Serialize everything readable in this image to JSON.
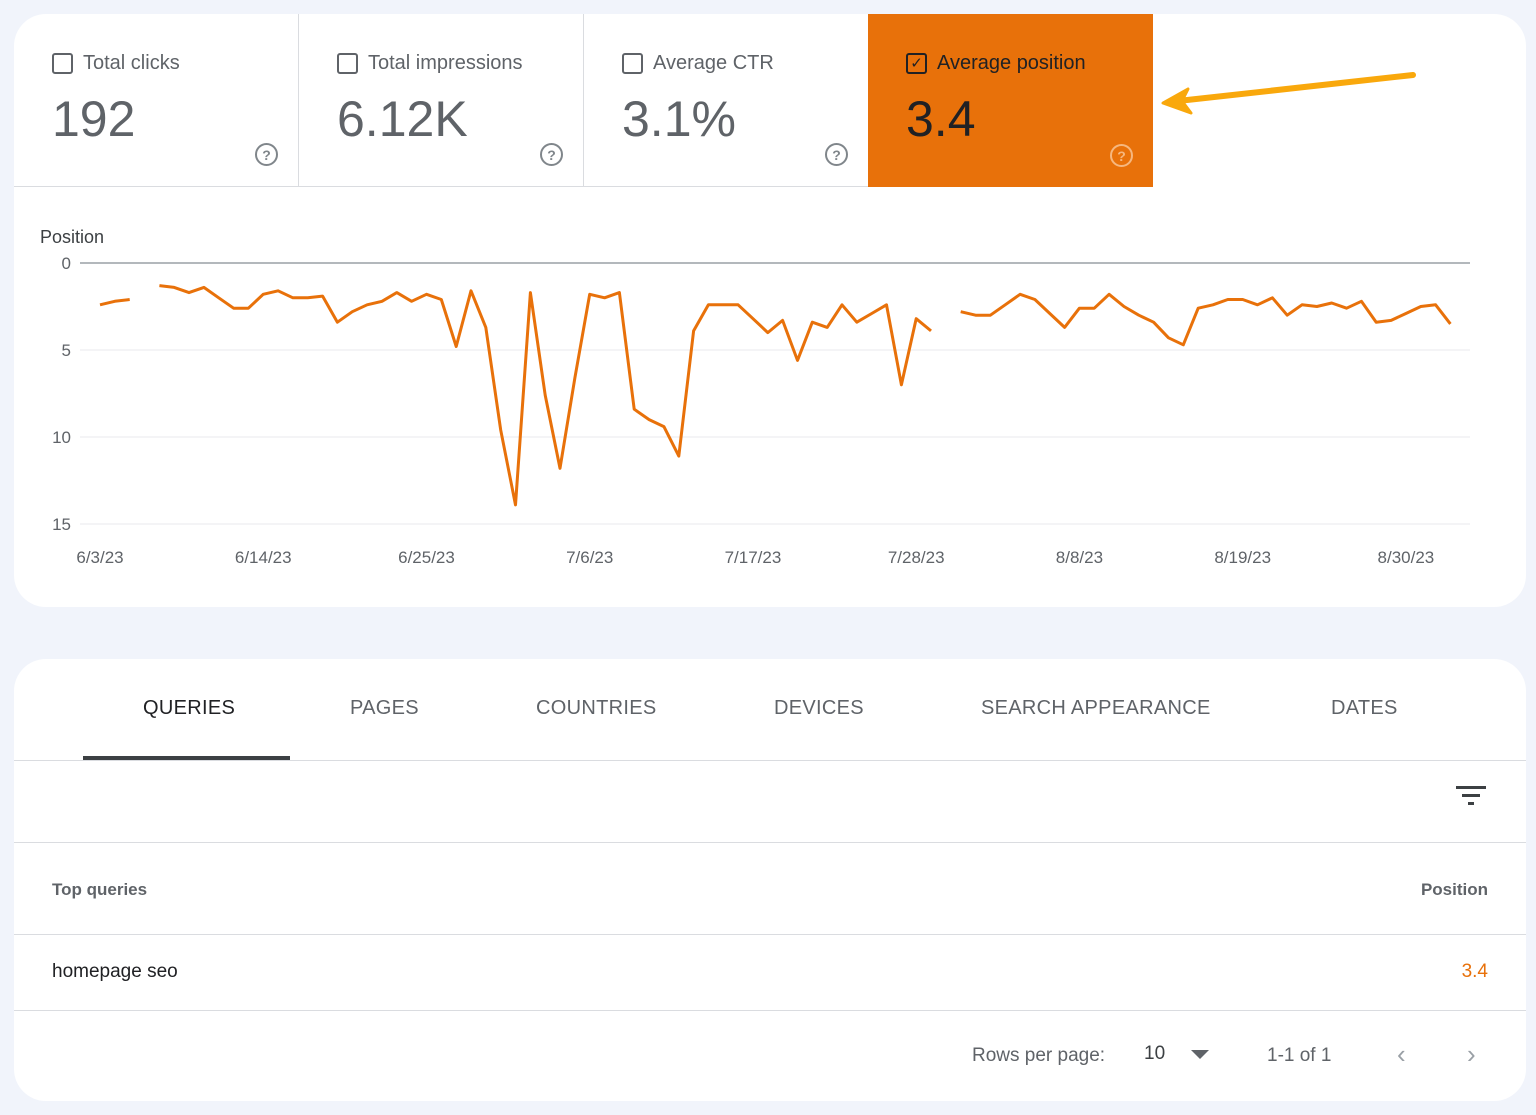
{
  "metrics": [
    {
      "label": "Total clicks",
      "value": "192",
      "checked": false
    },
    {
      "label": "Total impressions",
      "value": "6.12K",
      "checked": false
    },
    {
      "label": "Average CTR",
      "value": "3.1%",
      "checked": false
    },
    {
      "label": "Average position",
      "value": "3.4",
      "checked": true
    }
  ],
  "colors": {
    "accent": "#e8710a",
    "arrow": "#f9a80c",
    "background": "#f1f4fb"
  },
  "chart_data": {
    "type": "line",
    "ylabel": "Position",
    "ylim": [
      0,
      15
    ],
    "y_inverted": true,
    "y_ticks": [
      "0",
      "5",
      "10",
      "15"
    ],
    "x_ticks": [
      "6/3/23",
      "6/14/23",
      "6/25/23",
      "7/6/23",
      "7/17/23",
      "7/28/23",
      "8/8/23",
      "8/19/23",
      "8/30/23"
    ],
    "grid": true,
    "x_start": "2023-06-03",
    "series": [
      {
        "color": "#e8710a",
        "values": [
          2.4,
          2.2,
          2.1,
          null,
          1.3,
          1.4,
          1.7,
          1.4,
          2.0,
          2.6,
          2.6,
          1.8,
          1.6,
          2.0,
          2.0,
          1.9,
          3.4,
          2.8,
          2.4,
          2.2,
          1.7,
          2.2,
          1.8,
          2.1,
          4.8,
          1.6,
          3.7,
          9.6,
          13.9,
          1.7,
          7.6,
          11.8,
          6.6,
          1.8,
          2.0,
          1.7,
          8.4,
          9.0,
          9.4,
          11.1,
          3.9,
          2.4,
          2.4,
          2.4,
          3.2,
          4.0,
          3.3,
          5.6,
          3.4,
          3.7,
          2.4,
          3.4,
          2.9,
          2.4,
          7.0,
          3.2,
          3.9,
          null,
          2.8,
          3.0,
          3.0,
          2.4,
          1.8,
          2.1,
          2.9,
          3.7,
          2.6,
          2.6,
          1.8,
          2.5,
          3.0,
          3.4,
          4.3,
          4.7,
          2.6,
          2.4,
          2.1,
          2.1,
          2.4,
          2.0,
          3.0,
          2.4,
          2.5,
          2.3,
          2.6,
          2.2,
          3.4,
          3.3,
          2.9,
          2.5,
          2.4,
          3.5
        ]
      }
    ]
  },
  "tabs": [
    {
      "label": "QUERIES",
      "active": true
    },
    {
      "label": "PAGES",
      "active": false
    },
    {
      "label": "COUNTRIES",
      "active": false
    },
    {
      "label": "DEVICES",
      "active": false
    },
    {
      "label": "SEARCH APPEARANCE",
      "active": false
    },
    {
      "label": "DATES",
      "active": false
    }
  ],
  "table": {
    "columns": [
      "Top queries",
      "Position"
    ],
    "rows": [
      {
        "query": "homepage seo",
        "position": "3.4"
      }
    ]
  },
  "pagination": {
    "rows_per_page_label": "Rows per page:",
    "rows_per_page": "10",
    "range": "1-1 of 1"
  }
}
